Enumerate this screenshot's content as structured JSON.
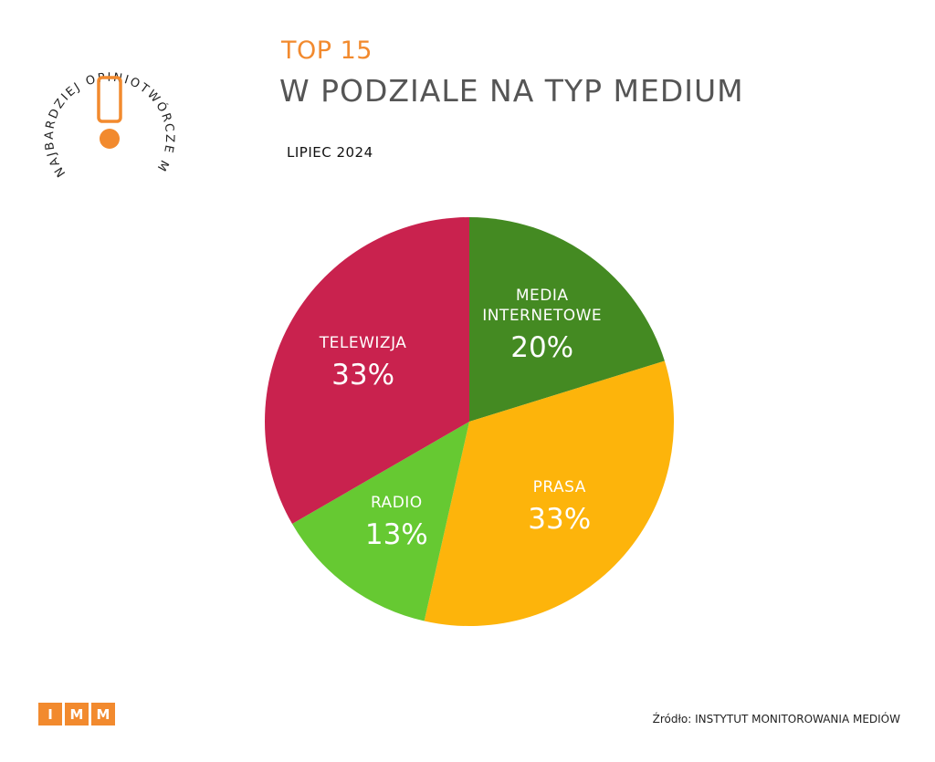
{
  "badge": {
    "text": "NAJBARDZIEJ OPINIOTWÓRCZE MEDIA",
    "accent": "#f28a2e",
    "icon": "exclamation-icon"
  },
  "header": {
    "top_label": "TOP 15",
    "title": "W PODZIALE NA TYP MEDIUM",
    "period": "LIPIEC 2024"
  },
  "chart_data": {
    "type": "pie",
    "title": "W PODZIALE NA TYP MEDIUM",
    "subtitle": "LIPIEC 2024",
    "slices": [
      {
        "label": "MEDIA INTERNETOWE",
        "value": 20,
        "value_label": "20%",
        "color": "#448a22"
      },
      {
        "label": "PRASA",
        "value": 33,
        "value_label": "33%",
        "color": "#fdb40b"
      },
      {
        "label": "RADIO",
        "value": 13,
        "value_label": "13%",
        "color": "#66c932"
      },
      {
        "label": "TELEWIZJA",
        "value": 33,
        "value_label": "33%",
        "color": "#c9224e"
      }
    ]
  },
  "footer": {
    "logo_letters": [
      "I",
      "M",
      "M"
    ],
    "source": "Źródło: INSTYTUT MONITOROWANIA MEDIÓW"
  }
}
